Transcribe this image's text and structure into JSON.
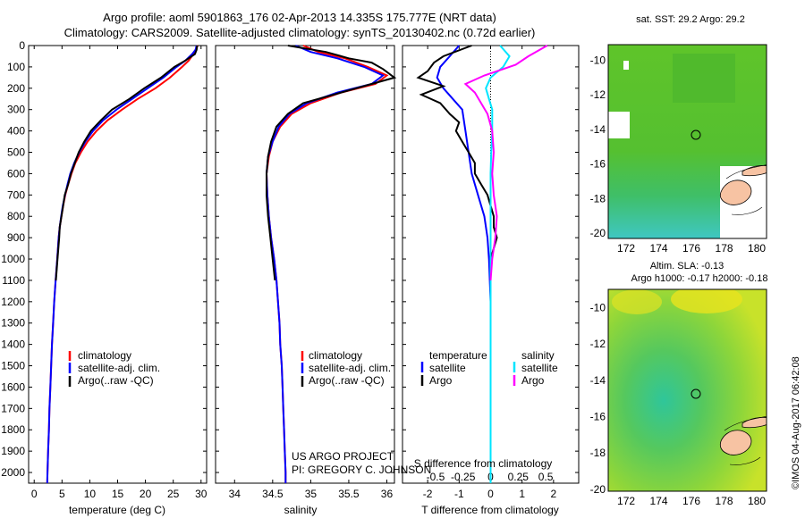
{
  "header": {
    "line1": "Argo profile: aoml 5901863_176 02-Apr-2013 14.335S 175.777E (NRT data)",
    "line2": "Climatology: CARS2009. Satellite-adjusted climatology: synTS_20130402.nc (0.72d earlier)"
  },
  "colors": {
    "climatology": "#ff0000",
    "satellite": "#0000ff",
    "argo": "#000000",
    "salinity_satellite": "#00e5ff",
    "salinity_argo": "#ff00ff"
  },
  "panels": {
    "temperature": {
      "xlabel": "temperature (deg C)"
    },
    "salinity": {
      "xlabel": "salinity"
    },
    "difference": {
      "xlabel_bottom": "T difference from climatology",
      "xlabel_top": "S difference from climatology"
    }
  },
  "legend_profiles": {
    "climatology": "climatology",
    "satellite": "satellite-adj. clim.",
    "argo": "Argo(..raw -QC)"
  },
  "legend_diff": {
    "temperature": "temperature",
    "salinity": "salinity",
    "satellite": "satellite",
    "argo": "Argo"
  },
  "credits": {
    "project": "US ARGO PROJECT",
    "pi": "PI: GREGORY C. JOHNSON"
  },
  "map_sst": {
    "title": "sat. SST: 29.2  Argo: 29.2"
  },
  "map_sla": {
    "title1": "Altim. SLA: -0.13",
    "title2": "Argo h1000: -0.17 h2000: -0.18"
  },
  "stamp": "©IMOS 04-Aug-2017 06:42:08",
  "chart_data": [
    {
      "type": "line",
      "panel": "temperature",
      "xlabel": "temperature (deg C)",
      "ylim": [
        0,
        2050
      ],
      "xlim": [
        -1,
        31
      ],
      "yticks": [
        0,
        100,
        200,
        300,
        400,
        500,
        600,
        700,
        800,
        900,
        1000,
        1100,
        1200,
        1300,
        1400,
        1500,
        1600,
        1700,
        1800,
        1900,
        2000
      ],
      "xticks": [
        0,
        5,
        10,
        15,
        20,
        25,
        30
      ],
      "series": [
        {
          "name": "climatology",
          "points": [
            [
              29.4,
              0
            ],
            [
              29,
              20
            ],
            [
              28.6,
              40
            ],
            [
              27.8,
              70
            ],
            [
              26.6,
              100
            ],
            [
              24.4,
              150
            ],
            [
              21.8,
              200
            ],
            [
              18.6,
              250
            ],
            [
              15.8,
              300
            ],
            [
              13.2,
              350
            ],
            [
              11.2,
              400
            ],
            [
              9.6,
              450
            ],
            [
              8.4,
              500
            ],
            [
              7.4,
              550
            ],
            [
              6.7,
              600
            ],
            [
              6.1,
              650
            ],
            [
              5.6,
              700
            ],
            [
              5.2,
              750
            ],
            [
              4.9,
              800
            ],
            [
              4.6,
              850
            ],
            [
              4.4,
              900
            ],
            [
              4.15,
              1000
            ],
            [
              3.85,
              1100
            ],
            [
              3.6,
              1200
            ],
            [
              3.4,
              1300
            ],
            [
              3.2,
              1400
            ],
            [
              3.05,
              1500
            ],
            [
              2.9,
              1600
            ],
            [
              2.75,
              1700
            ],
            [
              2.65,
              1800
            ],
            [
              2.5,
              1900
            ],
            [
              2.4,
              2000
            ],
            [
              2.35,
              2050
            ]
          ]
        },
        {
          "name": "satellite-adj. clim.",
          "points": [
            [
              29.2,
              0
            ],
            [
              29,
              20
            ],
            [
              28.4,
              40
            ],
            [
              27.2,
              70
            ],
            [
              25.6,
              100
            ],
            [
              23.2,
              150
            ],
            [
              20.4,
              200
            ],
            [
              17.6,
              250
            ],
            [
              14.8,
              300
            ],
            [
              12.4,
              350
            ],
            [
              10.6,
              400
            ],
            [
              9.2,
              450
            ],
            [
              8.1,
              500
            ],
            [
              7.2,
              550
            ],
            [
              6.5,
              600
            ],
            [
              6,
              650
            ],
            [
              5.55,
              700
            ],
            [
              5.15,
              750
            ],
            [
              4.85,
              800
            ],
            [
              4.6,
              850
            ],
            [
              4.4,
              900
            ],
            [
              4.15,
              1000
            ],
            [
              3.85,
              1100
            ],
            [
              3.6,
              1200
            ],
            [
              3.4,
              1300
            ],
            [
              3.2,
              1400
            ],
            [
              3.05,
              1500
            ],
            [
              2.9,
              1600
            ],
            [
              2.75,
              1700
            ],
            [
              2.65,
              1800
            ],
            [
              2.5,
              1900
            ],
            [
              2.4,
              2000
            ],
            [
              2.35,
              2050
            ]
          ]
        },
        {
          "name": "Argo(..raw -QC)",
          "points": [
            [
              29.3,
              0
            ],
            [
              29.2,
              20
            ],
            [
              28.9,
              40
            ],
            [
              27.2,
              70
            ],
            [
              25.2,
              100
            ],
            [
              22.8,
              150
            ],
            [
              19.8,
              200
            ],
            [
              17.1,
              250
            ],
            [
              14,
              300
            ],
            [
              12,
              350
            ],
            [
              10.2,
              400
            ],
            [
              9,
              450
            ],
            [
              8,
              500
            ],
            [
              7.3,
              550
            ],
            [
              6.6,
              600
            ],
            [
              6.1,
              650
            ],
            [
              5.5,
              700
            ],
            [
              5.2,
              750
            ],
            [
              4.9,
              800
            ],
            [
              4.6,
              850
            ],
            [
              4.5,
              900
            ],
            [
              4.2,
              1000
            ],
            [
              3.9,
              1100
            ]
          ]
        }
      ]
    },
    {
      "type": "line",
      "panel": "salinity",
      "xlabel": "salinity",
      "ylim": [
        0,
        2050
      ],
      "xlim": [
        33.75,
        36.1
      ],
      "xticks": [
        34,
        34.5,
        35,
        35.5,
        36
      ],
      "series": [
        {
          "name": "climatology",
          "points": [
            [
              34.9,
              0
            ],
            [
              35.1,
              30
            ],
            [
              35.45,
              60
            ],
            [
              35.75,
              100
            ],
            [
              36.0,
              140
            ],
            [
              35.85,
              180
            ],
            [
              35.4,
              220
            ],
            [
              35.0,
              270
            ],
            [
              34.75,
              320
            ],
            [
              34.6,
              380
            ],
            [
              34.5,
              450
            ],
            [
              34.45,
              520
            ],
            [
              34.42,
              600
            ],
            [
              34.43,
              700
            ],
            [
              34.45,
              800
            ],
            [
              34.48,
              900
            ],
            [
              34.52,
              1000
            ],
            [
              34.55,
              1100
            ],
            [
              34.57,
              1200
            ],
            [
              34.59,
              1300
            ],
            [
              34.6,
              1400
            ],
            [
              34.62,
              1500
            ],
            [
              34.63,
              1600
            ],
            [
              34.64,
              1700
            ],
            [
              34.65,
              1800
            ],
            [
              34.66,
              1900
            ],
            [
              34.67,
              2000
            ],
            [
              34.67,
              2050
            ]
          ]
        },
        {
          "name": "satellite-adj. clim.",
          "points": [
            [
              34.8,
              0
            ],
            [
              35.0,
              30
            ],
            [
              35.35,
              60
            ],
            [
              35.7,
              100
            ],
            [
              35.95,
              140
            ],
            [
              35.8,
              180
            ],
            [
              35.35,
              220
            ],
            [
              34.95,
              270
            ],
            [
              34.72,
              320
            ],
            [
              34.58,
              380
            ],
            [
              34.5,
              450
            ],
            [
              34.44,
              520
            ],
            [
              34.42,
              600
            ],
            [
              34.43,
              700
            ],
            [
              34.45,
              800
            ],
            [
              34.48,
              900
            ],
            [
              34.52,
              1000
            ],
            [
              34.55,
              1100
            ],
            [
              34.57,
              1200
            ],
            [
              34.59,
              1300
            ],
            [
              34.6,
              1400
            ],
            [
              34.62,
              1500
            ],
            [
              34.63,
              1600
            ],
            [
              34.64,
              1700
            ],
            [
              34.65,
              1800
            ],
            [
              34.66,
              1900
            ],
            [
              34.67,
              2000
            ],
            [
              34.67,
              2050
            ]
          ]
        },
        {
          "name": "Argo(..raw -QC)",
          "points": [
            [
              34.7,
              0
            ],
            [
              35.2,
              30
            ],
            [
              35.5,
              60
            ],
            [
              35.8,
              80
            ],
            [
              35.95,
              110
            ],
            [
              36.1,
              150
            ],
            [
              35.7,
              190
            ],
            [
              35.3,
              230
            ],
            [
              34.9,
              270
            ],
            [
              34.7,
              320
            ],
            [
              34.55,
              380
            ],
            [
              34.48,
              450
            ],
            [
              34.44,
              520
            ],
            [
              34.42,
              600
            ],
            [
              34.42,
              700
            ],
            [
              34.44,
              800
            ],
            [
              34.47,
              900
            ],
            [
              34.5,
              1000
            ],
            [
              34.53,
              1100
            ]
          ]
        }
      ]
    },
    {
      "type": "line",
      "panel": "difference",
      "xlabel": "T difference from climatology",
      "xlim": [
        -2.8,
        2.8
      ],
      "ylim": [
        0,
        2050
      ],
      "xticks": [
        -2,
        -1,
        0,
        1,
        2
      ],
      "top_ticks": [
        -0.5,
        -0.25,
        0,
        0.25,
        0.5
      ],
      "series": [
        {
          "name": "temperature satellite",
          "points": [
            [
              -1.0,
              0
            ],
            [
              -1.3,
              50
            ],
            [
              -1.6,
              100
            ],
            [
              -1.7,
              150
            ],
            [
              -1.5,
              200
            ],
            [
              -1.2,
              250
            ],
            [
              -0.9,
              300
            ],
            [
              -0.8,
              400
            ],
            [
              -0.7,
              500
            ],
            [
              -0.6,
              600
            ],
            [
              -0.4,
              700
            ],
            [
              -0.2,
              800
            ],
            [
              -0.1,
              900
            ],
            [
              -0.05,
              1000
            ],
            [
              0,
              1200
            ],
            [
              0,
              1500
            ],
            [
              0,
              1800
            ],
            [
              0,
              2050
            ]
          ]
        },
        {
          "name": "temperature Argo",
          "points": [
            [
              -0.6,
              0
            ],
            [
              -1.5,
              50
            ],
            [
              -1.8,
              80
            ],
            [
              -2.0,
              120
            ],
            [
              -2.3,
              150
            ],
            [
              -1.5,
              190
            ],
            [
              -2.2,
              230
            ],
            [
              -1.6,
              270
            ],
            [
              -1.3,
              320
            ],
            [
              -1.0,
              360
            ],
            [
              -1.1,
              400
            ],
            [
              -0.9,
              450
            ],
            [
              -0.7,
              500
            ],
            [
              -0.5,
              550
            ],
            [
              -0.5,
              600
            ],
            [
              -0.3,
              650
            ],
            [
              -0.1,
              700
            ],
            [
              0,
              750
            ],
            [
              0.1,
              800
            ],
            [
              0.1,
              850
            ],
            [
              0.2,
              900
            ],
            [
              0.1,
              950
            ],
            [
              0,
              1000
            ],
            [
              0,
              1100
            ]
          ]
        },
        {
          "name": "salinity satellite",
          "points": [
            [
              0.3,
              0
            ],
            [
              0.6,
              50
            ],
            [
              0.4,
              100
            ],
            [
              0.0,
              150
            ],
            [
              -0.15,
              200
            ],
            [
              -0.05,
              250
            ],
            [
              0.05,
              300
            ],
            [
              0.05,
              400
            ],
            [
              0.02,
              500
            ],
            [
              0,
              600
            ],
            [
              0,
              800
            ],
            [
              0,
              1000
            ],
            [
              0,
              1500
            ],
            [
              0,
              2050
            ]
          ]
        },
        {
          "name": "salinity Argo",
          "points": [
            [
              1.8,
              0
            ],
            [
              1.2,
              50
            ],
            [
              0.8,
              90
            ],
            [
              0.4,
              110
            ],
            [
              -0.2,
              140
            ],
            [
              -0.8,
              180
            ],
            [
              -0.5,
              220
            ],
            [
              -0.3,
              270
            ],
            [
              -0.1,
              320
            ],
            [
              0.05,
              400
            ],
            [
              0.1,
              500
            ],
            [
              0.05,
              600
            ],
            [
              0.1,
              700
            ],
            [
              0.2,
              800
            ],
            [
              0.15,
              900
            ],
            [
              0.05,
              1000
            ],
            [
              0,
              1100
            ]
          ]
        }
      ]
    }
  ],
  "maps": {
    "sst": {
      "lon_ticks": [
        172,
        174,
        176,
        178,
        180
      ],
      "lat_ticks": [
        -10,
        -12,
        -14,
        -16,
        -18,
        -20
      ],
      "float": [
        175.777,
        -14.335
      ]
    },
    "sla": {
      "lon_ticks": [
        172,
        174,
        176,
        178,
        180
      ],
      "lat_ticks": [
        -10,
        -12,
        -14,
        -16,
        -18,
        -20
      ],
      "float": [
        175.777,
        -14.335
      ]
    }
  }
}
